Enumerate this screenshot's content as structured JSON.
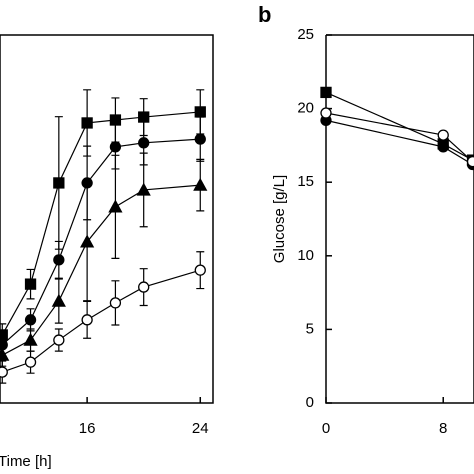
{
  "chart_data": [
    {
      "type": "line",
      "xlabel": "Time [h]",
      "xlim": [
        9.84,
        24.9
      ],
      "xticks": [
        16,
        24
      ],
      "ylim": [
        0,
        10
      ],
      "series": [
        {
          "color": "#000",
          "marker": "square",
          "x": [
            10,
            12,
            14,
            16,
            18,
            20,
            24
          ],
          "values": [
            1.85,
            3.23,
            5.98,
            7.61,
            7.69,
            7.77,
            7.91
          ],
          "errors": [
            0.3,
            0.4,
            1.8,
            0.9,
            0.6,
            0.5,
            0.6
          ]
        },
        {
          "color": "#000",
          "marker": "circle",
          "x": [
            10,
            12,
            14,
            16,
            18,
            20,
            24
          ],
          "values": [
            1.58,
            2.26,
            3.89,
            5.98,
            6.96,
            7.07,
            7.17
          ],
          "errors": [
            0.3,
            0.3,
            0.5,
            1.0,
            0.6,
            0.6,
            0.6
          ]
        },
        {
          "color": "#000",
          "marker": "triangle",
          "x": [
            10,
            12,
            14,
            16,
            18,
            20,
            24
          ],
          "values": [
            1.3,
            1.71,
            2.77,
            4.38,
            5.33,
            5.79,
            5.92
          ],
          "errors": [
            0.3,
            0.3,
            0.6,
            1.6,
            1.4,
            1.0,
            0.7
          ]
        },
        {
          "color": "#000",
          "marker": "open-circle",
          "x": [
            10,
            12,
            14,
            16,
            18,
            20,
            24
          ],
          "values": [
            0.84,
            1.11,
            1.71,
            2.26,
            2.72,
            3.15,
            3.61
          ],
          "errors": [
            0.3,
            0.3,
            0.3,
            0.5,
            0.6,
            0.5,
            0.5
          ]
        }
      ]
    },
    {
      "type": "line",
      "panel_label": "b",
      "ylabel": "Glucose [g/L]",
      "xlim": [
        0,
        10.1
      ],
      "xticks": [
        0,
        8
      ],
      "ylim": [
        0,
        25
      ],
      "yticks": [
        0,
        5,
        10,
        15,
        20,
        25
      ],
      "series": [
        {
          "color": "#000",
          "marker": "square",
          "x": [
            0,
            8,
            10
          ],
          "values": [
            21.1,
            17.6,
            16.5
          ]
        },
        {
          "color": "#000",
          "marker": "circle",
          "x": [
            0,
            8,
            10
          ],
          "values": [
            19.2,
            17.4,
            16.2
          ]
        },
        {
          "color": "#000",
          "marker": "open-circle",
          "x": [
            0,
            8,
            10
          ],
          "values": [
            19.7,
            18.2,
            16.4
          ]
        }
      ]
    }
  ]
}
